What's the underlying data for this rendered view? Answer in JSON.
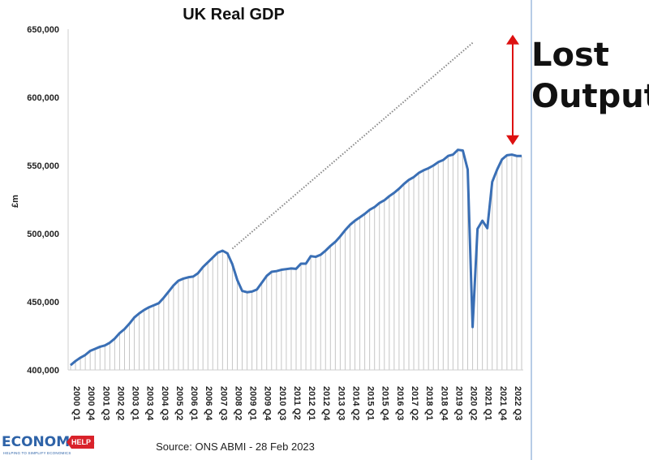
{
  "chart_data": {
    "type": "line",
    "title": "UK Real GDP",
    "ylabel": "£m",
    "xlabel": "",
    "ylim": [
      400000,
      650000
    ],
    "yticks": [
      400000,
      450000,
      500000,
      550000,
      600000,
      650000
    ],
    "ytick_labels": [
      "400,000",
      "450,000",
      "500,000",
      "550,000",
      "600,000",
      "650,000"
    ],
    "grid": false,
    "vertical_drop_lines": true,
    "x_tick_labels": [
      "2000 Q1",
      "2000 Q4",
      "2001 Q3",
      "2002 Q2",
      "2003 Q1",
      "2003 Q4",
      "2004 Q3",
      "2005 Q2",
      "2006 Q1",
      "2006 Q4",
      "2007 Q3",
      "2008 Q2",
      "2009 Q1",
      "2009 Q4",
      "2010 Q3",
      "2011 Q2",
      "2012 Q1",
      "2012 Q4",
      "2013 Q3",
      "2014 Q2",
      "2015 Q1",
      "2015 Q4",
      "2016 Q3",
      "2017 Q2",
      "2018 Q1",
      "2018 Q4",
      "2019 Q3",
      "2020 Q2",
      "2021 Q1",
      "2021 Q4",
      "2022 Q3"
    ],
    "x_tick_every": 3,
    "series": [
      {
        "name": "Real GDP",
        "color": "#3a6fb5",
        "start": "2000 Q1",
        "values": [
          403500,
          406500,
          409000,
          411000,
          414000,
          415500,
          417000,
          418000,
          420000,
          423000,
          427000,
          430000,
          434000,
          438500,
          441500,
          444000,
          446000,
          447500,
          449000,
          453000,
          457500,
          462000,
          465500,
          467000,
          468000,
          468500,
          471000,
          475500,
          479000,
          482500,
          486000,
          487500,
          485500,
          477500,
          466000,
          458000,
          457000,
          457500,
          459000,
          464000,
          469000,
          472000,
          472500,
          473500,
          474000,
          474500,
          474200,
          478000,
          478000,
          483500,
          483000,
          484500,
          487500,
          491000,
          494000,
          498000,
          502500,
          506500,
          509500,
          512000,
          514500,
          517500,
          519500,
          522500,
          524500,
          527500,
          530000,
          533000,
          536500,
          539500,
          541500,
          544500,
          546500,
          548000,
          550000,
          552500,
          554000,
          557000,
          558000,
          561500,
          561000,
          547000,
          431500,
          503500,
          509500,
          504000,
          538000,
          547000,
          554500,
          557500,
          558000,
          557000,
          557000
        ],
        "trend": {
          "from_index": 33,
          "from_value": 489000,
          "to_index": 82,
          "to_value": 640000,
          "style": "dotted",
          "color": "#888888"
        }
      }
    ],
    "annotations": [
      {
        "text_lines": [
          "Lost",
          "Output"
        ],
        "position": "right",
        "arrow": "double-headed-vertical",
        "arrow_color": "#dd1111",
        "arrow_from_value": 646000,
        "arrow_to_value": 565000
      }
    ]
  },
  "source": "Source: ONS ABMI - 28 Feb 2023",
  "logo": {
    "main": "ECONOMICS",
    "badge": "HELP",
    "tagline": "HELPING TO SIMPLIFY ECONOMICS"
  },
  "colors": {
    "line": "#3a6fb5",
    "arrow": "#dd1111",
    "dropline": "#c6c6c6",
    "trend": "#888888",
    "frame": "#b7cce6",
    "logo": "#2e63a8",
    "logo_badge": "#d9222a"
  }
}
